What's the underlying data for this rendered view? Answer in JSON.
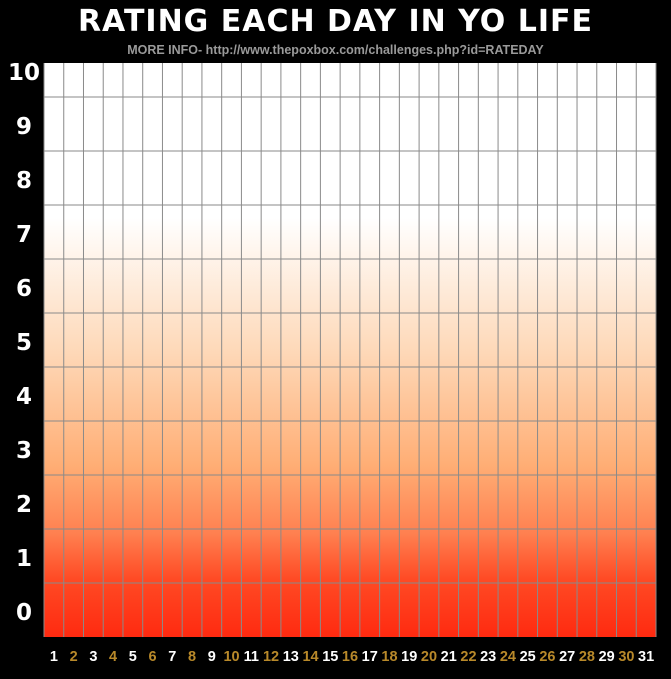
{
  "page": {
    "title": "RATING EACH DAY IN YO LIFE",
    "subtitle": "MORE INFO- http://www.thepoxbox.com/challenges.php?id=RATEDAY"
  },
  "chart_data": {
    "type": "bar",
    "title": "RATING EACH DAY IN YO LIFE",
    "subtitle": "MORE INFO- http://www.thepoxbox.com/challenges.php?id=RATEDAY",
    "xlabel": "",
    "ylabel": "",
    "categories": [
      "1",
      "2",
      "3",
      "4",
      "5",
      "6",
      "7",
      "8",
      "9",
      "10",
      "11",
      "12",
      "13",
      "14",
      "15",
      "16",
      "17",
      "18",
      "19",
      "20",
      "21",
      "22",
      "23",
      "24",
      "25",
      "26",
      "27",
      "28",
      "29",
      "30",
      "31"
    ],
    "series": [],
    "ylim": [
      0,
      10
    ],
    "yticks": [
      "0",
      "1",
      "2",
      "3",
      "4",
      "5",
      "6",
      "7",
      "8",
      "9",
      "10"
    ],
    "grid": true,
    "colors": {
      "background": "#000000",
      "plot_top": "#ffffff",
      "plot_bottom": "#ff2a10",
      "gridline": "#8a8a8a",
      "tick_label_odd": "#ffffff",
      "tick_label_even": "#b8892a"
    }
  }
}
